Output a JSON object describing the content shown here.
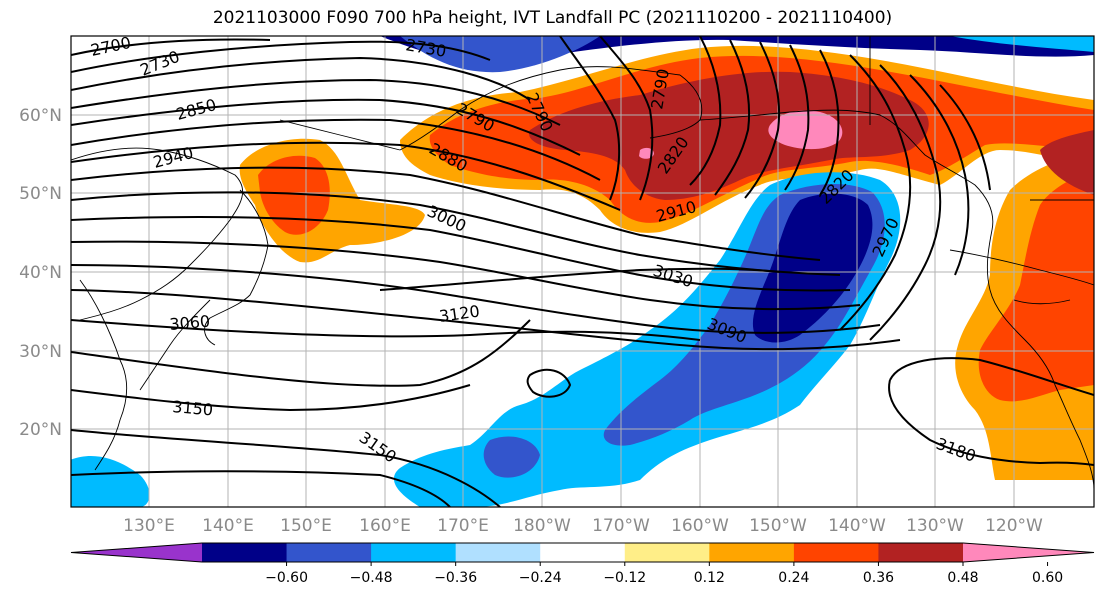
{
  "title": "2021103000 F090 700 hPa height, IVT Landfall PC (2021110200 - 2021110400)",
  "lat_labels": [
    "60°N",
    "50°N",
    "40°N",
    "30°N",
    "20°N"
  ],
  "lon_labels": [
    "130°E",
    "140°E",
    "150°E",
    "160°E",
    "170°E",
    "180°W",
    "170°W",
    "160°W",
    "150°W",
    "140°W",
    "130°W",
    "120°W"
  ],
  "contour_labels": [
    "2700",
    "2730",
    "2730",
    "2850",
    "2790",
    "2790",
    "2790",
    "2880",
    "2820",
    "2820",
    "2940",
    "2910",
    "3000",
    "2970",
    "3030",
    "3060",
    "3090",
    "3120",
    "3150",
    "3150",
    "3180"
  ],
  "colorbar": {
    "colors": [
      "#9933cc",
      "#000088",
      "#3355cc",
      "#00bbff",
      "#b0e0ff",
      "#ffffff",
      "#ffee88",
      "#ffa500",
      "#ff4400",
      "#b22222",
      "#ff88bb"
    ],
    "tick_labels": [
      "−0.60",
      "−0.48",
      "−0.36",
      "−0.24",
      "−0.12",
      "0.12",
      "0.24",
      "0.36",
      "0.48",
      "0.60"
    ]
  }
}
